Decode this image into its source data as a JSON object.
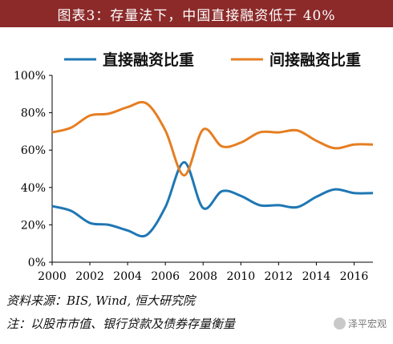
{
  "header": {
    "title": "图表3：存量法下，中国直接融资低于 40%"
  },
  "chart_data": {
    "type": "line",
    "title": "",
    "xlabel": "",
    "ylabel": "",
    "y_tick_labels": [
      "0%",
      "20%",
      "40%",
      "60%",
      "80%",
      "100%"
    ],
    "y_ticks": [
      0,
      20,
      40,
      60,
      80,
      100
    ],
    "x_ticks": [
      2000,
      2002,
      2004,
      2006,
      2008,
      2010,
      2012,
      2014,
      2016
    ],
    "x_tick_labels": [
      "2000",
      "2002",
      "2004",
      "2006",
      "2008",
      "2010",
      "2012",
      "2014",
      "2016"
    ],
    "xlim": [
      2000,
      2017
    ],
    "ylim": [
      0,
      100
    ],
    "grid": false,
    "legend_position": "top",
    "series": [
      {
        "name": "直接融资比重",
        "color": "#1f77b4",
        "x": [
          2000,
          2001,
          2002,
          2003,
          2004,
          2005,
          2006,
          2007,
          2008,
          2009,
          2010,
          2011,
          2012,
          2013,
          2014,
          2015,
          2016,
          2017
        ],
        "y": [
          30,
          27.5,
          21,
          20,
          17,
          14.5,
          29.5,
          53.5,
          29,
          38,
          35.5,
          30.5,
          30.5,
          29.5,
          35,
          39,
          37,
          37
        ]
      },
      {
        "name": "间接融资比重",
        "color": "#e67e22",
        "x": [
          2000,
          2001,
          2002,
          2003,
          2004,
          2005,
          2006,
          2007,
          2008,
          2009,
          2010,
          2011,
          2012,
          2013,
          2014,
          2015,
          2016,
          2017
        ],
        "y": [
          69.5,
          72,
          78.5,
          79.5,
          83,
          85,
          70.5,
          46.5,
          71,
          62,
          64,
          69.5,
          69.5,
          70.5,
          65,
          61,
          63,
          63
        ]
      }
    ]
  },
  "footer": {
    "source": "资料来源：BIS, Wind, 恒大研究院",
    "note": "注：以股市市值、银行贷款及债券存量衡量"
  },
  "watermark": {
    "text": "泽平宏观"
  }
}
